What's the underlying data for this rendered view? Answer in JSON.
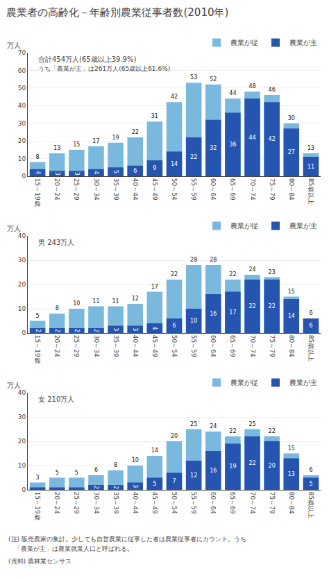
{
  "title": "農業者の高齢化－年齢別農業従事者数(2010年)",
  "annotations": [
    "(注) 販売農家の集計。少しでも自営農業に従事した者は農業従事者にカウント。うち",
    "　「農業が主」は農業就業人口と呼ばれる。",
    "(資料) 農林業センサス"
  ],
  "chart_data": [
    {
      "type": "bar",
      "subtitle": "合計454万人(65歳以上39.9%)",
      "annotations": [
        "うち「農業が主」は261万人(65歳以上61.6%)"
      ],
      "ylabel": "万人",
      "categories": [
        "15～19歳",
        "20～24",
        "25～29",
        "30～34",
        "35～39",
        "40～44",
        "45～49",
        "50～54",
        "55～59",
        "60～64",
        "65～69",
        "70～74",
        "75～79",
        "80～84",
        "85歳以上"
      ],
      "series": [
        {
          "name": "農業が従",
          "color": "#7ab8dd",
          "values": [
            8,
            13,
            15,
            17,
            19,
            22,
            31,
            42,
            53,
            52,
            44,
            48,
            46,
            30,
            13
          ]
        },
        {
          "name": "農業が主",
          "color": "#2655b0",
          "values": [
            4,
            3,
            3,
            4,
            5,
            6,
            9,
            14,
            22,
            32,
            36,
            44,
            42,
            27,
            11
          ]
        }
      ],
      "ylim": [
        0,
        70
      ],
      "yticks": [
        0,
        10,
        20,
        30,
        40,
        50,
        60,
        70
      ],
      "grid": true,
      "data_labels": true,
      "stacked": false,
      "legend": "upper right"
    },
    {
      "type": "bar",
      "subtitle": "男 243万人",
      "ylabel": "万人",
      "categories": [
        "15～19歳",
        "20～24",
        "25～29",
        "30～34",
        "35～39",
        "40～44",
        "45～49",
        "50～54",
        "55～59",
        "60～64",
        "65～69",
        "70～74",
        "75～79",
        "80～84",
        "85歳以上"
      ],
      "series": [
        {
          "name": "農業が従",
          "color": "#7ab8dd",
          "values": [
            5,
            8,
            10,
            11,
            11,
            12,
            17,
            22,
            28,
            28,
            22,
            24,
            23,
            15,
            6
          ]
        },
        {
          "name": "農業が主",
          "color": "#2655b0",
          "values": [
            2,
            2,
            2,
            2,
            3,
            3,
            4,
            6,
            10,
            16,
            17,
            22,
            22,
            14,
            6
          ]
        }
      ],
      "ylim": [
        0,
        40
      ],
      "yticks": [
        0,
        10,
        20,
        30,
        40
      ],
      "grid": true,
      "data_labels": true,
      "stacked": false,
      "legend": "upper right"
    },
    {
      "type": "bar",
      "subtitle": "女 210万人",
      "ylabel": "万人",
      "categories": [
        "15～19歳",
        "20～24",
        "25～29",
        "30～34",
        "35～39",
        "40～44",
        "45～49",
        "50～54",
        "55～59",
        "60～64",
        "65～69",
        "70～74",
        "75～79",
        "80～84",
        "85歳以上"
      ],
      "series": [
        {
          "name": "農業が従",
          "color": "#7ab8dd",
          "values": [
            3,
            5,
            5,
            6,
            8,
            10,
            14,
            20,
            25,
            24,
            22,
            25,
            22,
            15,
            6
          ]
        },
        {
          "name": "農業が主",
          "color": "#2655b0",
          "values": [
            1,
            1,
            1,
            2,
            2,
            3,
            5,
            7,
            12,
            16,
            19,
            22,
            20,
            13,
            5
          ],
          "value_labels": [
            null,
            null,
            null,
            "2",
            "2",
            "3",
            "5",
            "7",
            "12",
            "16",
            "19",
            "22",
            "20",
            "13",
            "5"
          ]
        }
      ],
      "ylim": [
        0,
        40
      ],
      "yticks": [
        0,
        10,
        20,
        30,
        40
      ],
      "grid": true,
      "data_labels": true,
      "stacked": false,
      "legend": "upper right"
    }
  ]
}
